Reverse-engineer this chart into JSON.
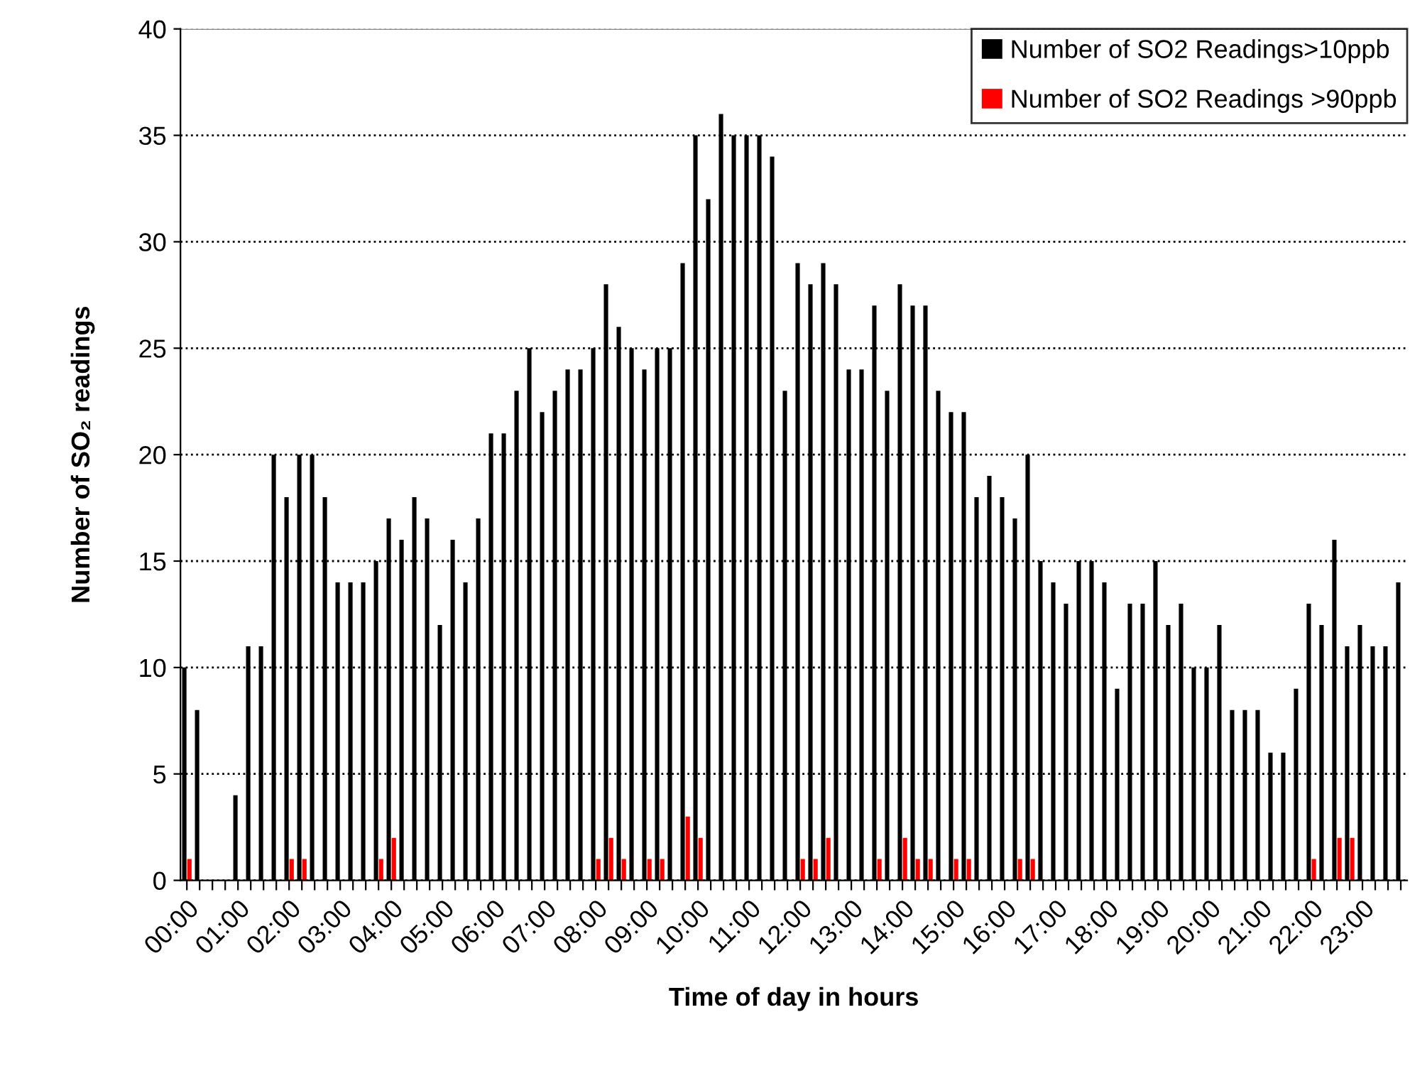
{
  "chart_data": {
    "type": "bar",
    "xlabel": "Time of day in hours",
    "ylabel": "Number of SO₂ readings",
    "categories": [
      "00:00",
      null,
      null,
      null,
      "01:00",
      null,
      null,
      null,
      "02:00",
      null,
      null,
      null,
      "03:00",
      null,
      null,
      null,
      "04:00",
      null,
      null,
      null,
      "05:00",
      null,
      null,
      null,
      "06:00",
      null,
      null,
      null,
      "07:00",
      null,
      null,
      null,
      "08:00",
      null,
      null,
      null,
      "09:00",
      null,
      null,
      null,
      "10:00",
      null,
      null,
      null,
      "11:00",
      null,
      null,
      null,
      "12:00",
      null,
      null,
      null,
      "13:00",
      null,
      null,
      null,
      "14:00",
      null,
      null,
      null,
      "15:00",
      null,
      null,
      null,
      "16:00",
      null,
      null,
      null,
      "17:00",
      null,
      null,
      null,
      "18:00",
      null,
      null,
      null,
      "19:00",
      null,
      null,
      null,
      "20:00",
      null,
      null,
      null,
      "21:00",
      null,
      null,
      null,
      "22:00",
      null,
      null,
      null,
      "23:00",
      null,
      null,
      null
    ],
    "series": [
      {
        "name": "Number of SO2 Readings>10ppb",
        "color": "#000000",
        "values": [
          10,
          8,
          0,
          0,
          4,
          11,
          11,
          20,
          18,
          20,
          20,
          18,
          14,
          14,
          14,
          15,
          17,
          16,
          18,
          17,
          12,
          16,
          14,
          17,
          21,
          21,
          23,
          25,
          22,
          23,
          24,
          24,
          25,
          28,
          26,
          25,
          24,
          25,
          25,
          29,
          35,
          32,
          36,
          35,
          35,
          35,
          34,
          23,
          29,
          28,
          29,
          28,
          24,
          24,
          27,
          23,
          28,
          27,
          27,
          23,
          22,
          22,
          18,
          19,
          18,
          17,
          20,
          15,
          14,
          13,
          15,
          15,
          14,
          9,
          13,
          13,
          15,
          12,
          13,
          10,
          10,
          12,
          8,
          8,
          8,
          6,
          6,
          9,
          13,
          12,
          16,
          11,
          12,
          11,
          11,
          14
        ]
      },
      {
        "name": "Number of SO2 Readings >90ppb",
        "color": "#ff0000",
        "values": [
          1,
          0,
          0,
          0,
          0,
          0,
          0,
          0,
          1,
          1,
          0,
          0,
          0,
          0,
          0,
          1,
          2,
          0,
          0,
          0,
          0,
          0,
          0,
          0,
          0,
          0,
          0,
          0,
          0,
          0,
          0,
          0,
          1,
          2,
          1,
          0,
          1,
          1,
          0,
          3,
          2,
          0,
          0,
          0,
          0,
          0,
          0,
          0,
          1,
          1,
          2,
          0,
          0,
          0,
          1,
          0,
          2,
          1,
          1,
          0,
          1,
          1,
          0,
          0,
          0,
          1,
          1,
          0,
          0,
          0,
          0,
          0,
          0,
          0,
          0,
          0,
          0,
          0,
          0,
          0,
          0,
          0,
          0,
          0,
          0,
          0,
          0,
          0,
          1,
          0,
          2,
          2,
          0,
          0,
          0,
          0
        ]
      }
    ],
    "ylim": [
      0,
      40
    ],
    "yticks": [
      0,
      5,
      10,
      15,
      20,
      25,
      30,
      35,
      40
    ],
    "grid": "y",
    "legend": "top right"
  }
}
